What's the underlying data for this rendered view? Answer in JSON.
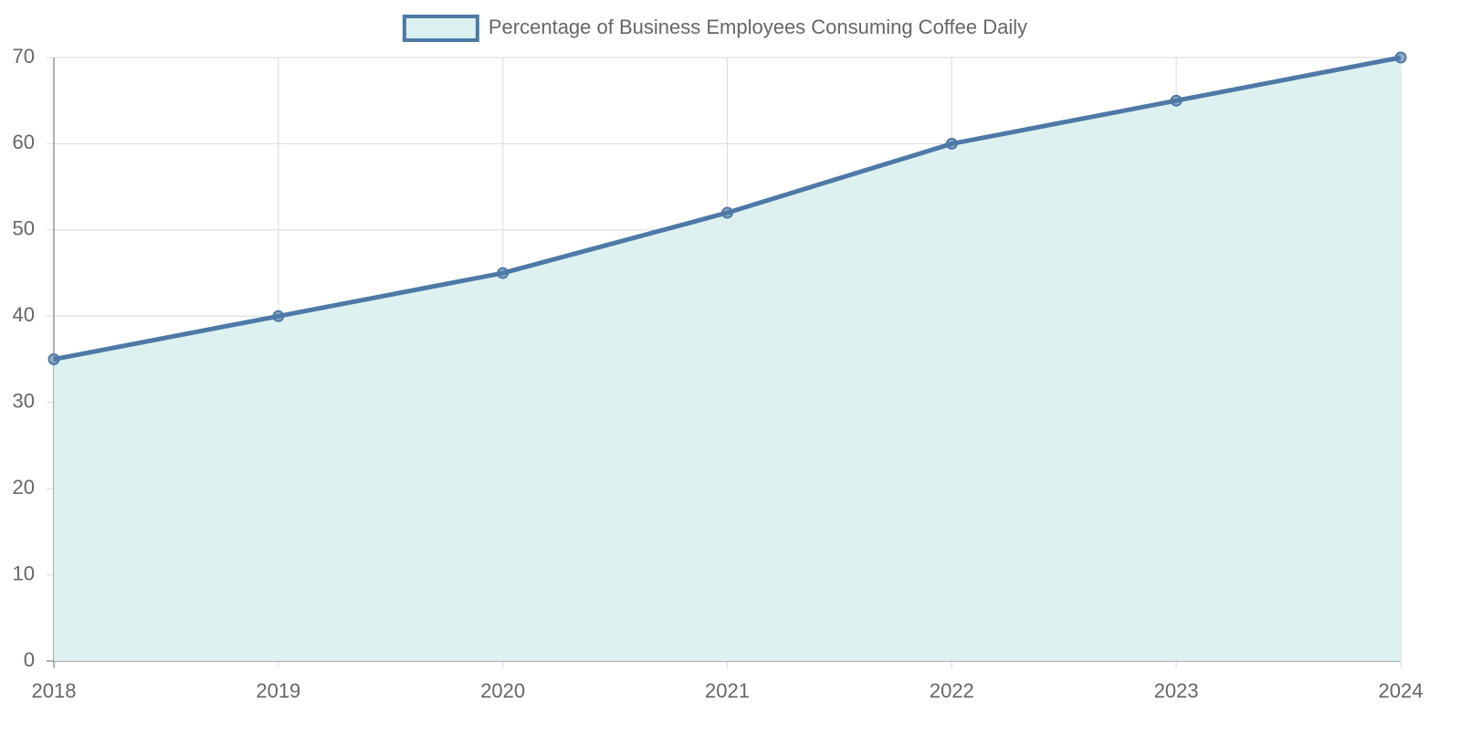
{
  "chart_data": {
    "type": "line",
    "categories": [
      "2018",
      "2019",
      "2020",
      "2021",
      "2022",
      "2023",
      "2024"
    ],
    "series": [
      {
        "name": "Percentage of Business Employees Consuming Coffee Daily",
        "color": "#4e79a7",
        "fill": "#dbf1ef",
        "values": [
          35,
          40,
          45,
          52,
          60,
          65,
          70
        ]
      }
    ],
    "ylim": [
      0,
      70
    ],
    "yticks": [
      0,
      10,
      20,
      30,
      40,
      50,
      60,
      70
    ],
    "grid": true,
    "legend": "top"
  }
}
